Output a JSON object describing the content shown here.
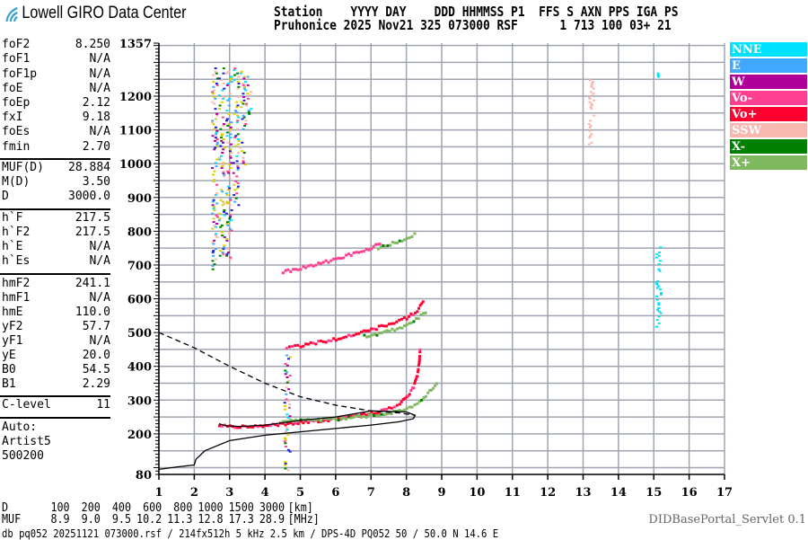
{
  "logo": {
    "text": "Lowell GIRO Data Center"
  },
  "header": {
    "line1": "Station    YYYY DAY    DDD HHMMSS P1  FFS S AXN PPS IGA PS",
    "line2": "Pruhonice 2025 Nov21 325 073000 RSF      1 713 100 03+ 21"
  },
  "params": [
    {
      "k": "foF2",
      "v": "8.250"
    },
    {
      "k": "foF1",
      "v": "N/A"
    },
    {
      "k": "foF1p",
      "v": "N/A"
    },
    {
      "k": "foE",
      "v": "N/A"
    },
    {
      "k": "foEp",
      "v": "2.12"
    },
    {
      "k": "fxI",
      "v": "9.18"
    },
    {
      "k": "foEs",
      "v": "N/A"
    },
    {
      "k": "fmin",
      "v": "2.70"
    },
    {
      "k": "MUF(D)",
      "v": "28.884"
    },
    {
      "k": "M(D)",
      "v": "3.50"
    },
    {
      "k": "D",
      "v": "3000.0"
    },
    {
      "k": "h`F",
      "v": "217.5"
    },
    {
      "k": "h`F2",
      "v": "217.5"
    },
    {
      "k": "h`E",
      "v": "N/A"
    },
    {
      "k": "h`Es",
      "v": "N/A"
    },
    {
      "k": "hmF2",
      "v": "241.1"
    },
    {
      "k": "hmF1",
      "v": "N/A"
    },
    {
      "k": "hmE",
      "v": "110.0"
    },
    {
      "k": "yF2",
      "v": "57.7"
    },
    {
      "k": "yF1",
      "v": "N/A"
    },
    {
      "k": "yE",
      "v": "20.0"
    },
    {
      "k": "B0",
      "v": "54.5"
    },
    {
      "k": "B1",
      "v": "2.29"
    },
    {
      "k": "C-level",
      "v": "11"
    }
  ],
  "auto": {
    "line1": "Auto:",
    "line2": "Artist5",
    "line3": "500200"
  },
  "muf_table": {
    "d_label": "D",
    "d_values": [
      "100",
      "200",
      "400",
      "600",
      "800",
      "1000",
      "1500",
      "3000"
    ],
    "d_unit": "[km]",
    "muf_label": "MUF",
    "muf_values": [
      "8.9",
      "9.0",
      "9.5",
      "10.2",
      "11.3",
      "12.8",
      "17.3",
      "28.9"
    ],
    "muf_unit": "[MHz]"
  },
  "footer": "db pq052 20251121 073000.rsf / 214fx512h 5 kHz 2.5 km / DPS-4D PQ052 50 / 50.0 N 14.6 E",
  "servlet": "DIDBasePortal_Servlet 0.1",
  "legend": [
    {
      "label": "NNE",
      "color": "#00e0ff"
    },
    {
      "label": "E",
      "color": "#40a8ff"
    },
    {
      "label": "W",
      "color": "#b0009a"
    },
    {
      "label": "Vo-",
      "color": "#ff4090"
    },
    {
      "label": "Vo+",
      "color": "#ff0030"
    },
    {
      "label": "SSW",
      "color": "#f8b8b0"
    },
    {
      "label": "X-",
      "color": "#008000"
    },
    {
      "label": "X+",
      "color": "#80b860"
    }
  ],
  "chart_data": {
    "type": "scatter",
    "xlabel": "",
    "ylabel": "",
    "xlim": [
      1,
      17
    ],
    "ylim": [
      80,
      1357
    ],
    "xticks": [
      "1",
      "2",
      "3",
      "4",
      "5",
      "6",
      "7",
      "8",
      "9",
      "10",
      "11",
      "12",
      "13",
      "14",
      "15",
      "16",
      "17"
    ],
    "yticks": [
      80,
      200,
      300,
      400,
      500,
      600,
      700,
      800,
      900,
      1000,
      1100,
      1200,
      1357
    ],
    "grid": true,
    "legend_position": "right",
    "traces": [
      {
        "pol": "Vo+",
        "points": [
          [
            2.7,
            228
          ],
          [
            3,
            222
          ],
          [
            3.5,
            222
          ],
          [
            4,
            225
          ],
          [
            4.5,
            230
          ],
          [
            5,
            235
          ],
          [
            5.5,
            240
          ],
          [
            6,
            245
          ],
          [
            6.5,
            252
          ],
          [
            7,
            262
          ],
          [
            7.5,
            275
          ],
          [
            7.8,
            290
          ],
          [
            8,
            310
          ],
          [
            8.2,
            340
          ],
          [
            8.3,
            375
          ],
          [
            8.35,
            410
          ],
          [
            8.38,
            455
          ]
        ]
      },
      {
        "pol": "X+",
        "points": [
          [
            4.5,
            238
          ],
          [
            5,
            240
          ],
          [
            5.5,
            242
          ],
          [
            6,
            245
          ],
          [
            6.5,
            250
          ],
          [
            7,
            255
          ],
          [
            7.5,
            262
          ],
          [
            8,
            275
          ],
          [
            8.3,
            290
          ],
          [
            8.6,
            320
          ],
          [
            8.9,
            360
          ]
        ]
      },
      {
        "pol": "Vo+",
        "points": [
          [
            4.6,
            455
          ],
          [
            5,
            462
          ],
          [
            5.5,
            472
          ],
          [
            6,
            482
          ],
          [
            6.5,
            495
          ],
          [
            7,
            510
          ],
          [
            7.5,
            525
          ],
          [
            8,
            545
          ],
          [
            8.3,
            565
          ],
          [
            8.5,
            600
          ]
        ]
      },
      {
        "pol": "X+",
        "points": [
          [
            6.8,
            490
          ],
          [
            7.3,
            500
          ],
          [
            7.8,
            515
          ],
          [
            8.2,
            535
          ],
          [
            8.6,
            565
          ]
        ]
      },
      {
        "pol": "Vo-",
        "points": [
          [
            4.5,
            680
          ],
          [
            5,
            692
          ],
          [
            5.5,
            705
          ],
          [
            6,
            718
          ],
          [
            6.5,
            735
          ],
          [
            7,
            752
          ],
          [
            7.3,
            770
          ]
        ]
      },
      {
        "pol": "X+",
        "points": [
          [
            7.2,
            750
          ],
          [
            7.6,
            765
          ],
          [
            8,
            780
          ],
          [
            8.3,
            795
          ]
        ]
      }
    ],
    "spread": [
      {
        "f": 2.55,
        "h": [
          690,
          1290
        ]
      },
      {
        "f": 2.75,
        "h": [
          720,
          1290
        ]
      },
      {
        "f": 2.95,
        "h": [
          720,
          1290
        ]
      },
      {
        "f": 3.15,
        "h": [
          880,
          1290
        ]
      },
      {
        "f": 3.35,
        "h": [
          1000,
          1290
        ]
      },
      {
        "f": 3.5,
        "h": [
          1150,
          1270
        ]
      },
      {
        "f": 4.6,
        "h": [
          90,
          440
        ]
      },
      {
        "f": 15.1,
        "h": [
          520,
          760
        ]
      },
      {
        "f": 15.1,
        "h": [
          1260,
          1280
        ]
      },
      {
        "f": 13.2,
        "h": [
          1060,
          1270
        ]
      }
    ],
    "profile_solid": [
      [
        1,
        95
      ],
      [
        1.5,
        102
      ],
      [
        2,
        108
      ],
      [
        2.05,
        125
      ],
      [
        2.3,
        150
      ],
      [
        3,
        180
      ],
      [
        4,
        196
      ],
      [
        5,
        206
      ],
      [
        6,
        216
      ],
      [
        7,
        226
      ],
      [
        7.8,
        236
      ],
      [
        8.2,
        245
      ],
      [
        8.25,
        255
      ],
      [
        8,
        265
      ],
      [
        7,
        268
      ],
      [
        6,
        250
      ],
      [
        5,
        240
      ],
      [
        4,
        226
      ],
      [
        3.3,
        222
      ],
      [
        2.9,
        224
      ],
      [
        2.7,
        230
      ]
    ],
    "profile_dashed": [
      [
        1,
        500
      ],
      [
        2,
        455
      ],
      [
        3,
        400
      ],
      [
        4,
        350
      ],
      [
        5,
        310
      ],
      [
        6,
        285
      ],
      [
        7,
        268
      ],
      [
        7.8,
        262
      ],
      [
        8.25,
        255
      ]
    ]
  }
}
